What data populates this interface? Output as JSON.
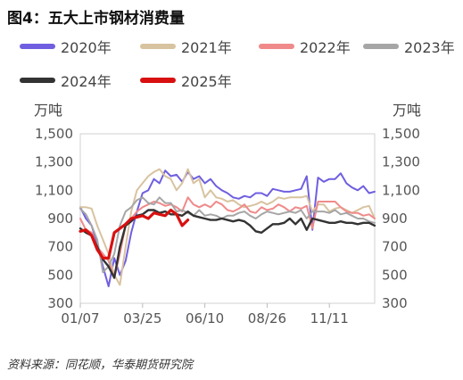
{
  "title": "图4：五大上市钢材消费量",
  "source": "资料来源：同花顺，华泰期货研究院",
  "colors": {
    "2020年": "#6f5fe0",
    "2021年": "#d8c3a0",
    "2022年": "#f08a8a",
    "2023年": "#a6a6a6",
    "2024年": "#333333",
    "2025年": "#d81010"
  },
  "chart_data": {
    "type": "line",
    "title": "",
    "ylabel_left": "万吨",
    "ylabel_right": "万吨",
    "ylim": [
      300,
      1500
    ],
    "yticks": [
      "1,500",
      "1,300",
      "1,100",
      "900",
      "700",
      "500",
      "300"
    ],
    "ytick_values": [
      1500,
      1300,
      1100,
      900,
      700,
      500,
      300
    ],
    "xticks": [
      "01/07",
      "03/25",
      "06/10",
      "08/26",
      "11/11"
    ],
    "xtick_weeks": [
      1,
      12,
      23,
      34,
      45
    ],
    "x_range_weeks": [
      1,
      53
    ],
    "legend_position": "top",
    "series": [
      {
        "name": "2020年",
        "values": [
          980,
          900,
          850,
          720,
          560,
          420,
          620,
          500,
          600,
          800,
          950,
          1080,
          1100,
          1180,
          1150,
          1240,
          1200,
          1210,
          1160,
          1230,
          1180,
          1200,
          1150,
          1180,
          1130,
          1100,
          1080,
          1050,
          1040,
          1060,
          1050,
          1080,
          1080,
          1060,
          1110,
          1100,
          1090,
          1090,
          1100,
          1110,
          1200,
          820,
          1190,
          1160,
          1180,
          1180,
          1220,
          1150,
          1120,
          1100,
          1130,
          1080,
          1090
        ]
      },
      {
        "name": "2021年",
        "values": [
          980,
          980,
          970,
          850,
          750,
          650,
          500,
          430,
          700,
          950,
          1100,
          1150,
          1200,
          1230,
          1250,
          1200,
          1180,
          1100,
          1150,
          1250,
          1150,
          1180,
          1050,
          1100,
          1050,
          1040,
          1020,
          1030,
          1000,
          980,
          990,
          1000,
          1020,
          1000,
          1020,
          1050,
          1040,
          1050,
          1050,
          1050,
          1060,
          950,
          1000,
          1000,
          950,
          970,
          980,
          960,
          940,
          960,
          980,
          990,
          900
        ]
      },
      {
        "name": "2022年",
        "values": [
          900,
          820,
          800,
          700,
          650,
          600,
          480,
          650,
          850,
          900,
          950,
          980,
          1000,
          1020,
          1010,
          990,
          1000,
          980,
          950,
          1050,
          1000,
          980,
          1000,
          980,
          1020,
          1000,
          960,
          950,
          970,
          1000,
          950,
          940,
          980,
          960,
          970,
          1000,
          980,
          950,
          980,
          970,
          990,
          830,
          1020,
          1020,
          1020,
          1020,
          980,
          950,
          940,
          940,
          920,
          930,
          900
        ]
      },
      {
        "name": "2023年",
        "values": [
          970,
          930,
          850,
          750,
          520,
          560,
          650,
          850,
          950,
          980,
          1030,
          1050,
          1010,
          1000,
          1050,
          1010,
          1010,
          950,
          960,
          940,
          920,
          960,
          920,
          930,
          920,
          900,
          920,
          920,
          940,
          950,
          920,
          900,
          930,
          950,
          940,
          930,
          940,
          950,
          940,
          960,
          900,
          950,
          950,
          950,
          940,
          960,
          930,
          940,
          920,
          900,
          900,
          880,
          870
        ]
      },
      {
        "name": "2024年",
        "values": [
          830,
          800,
          780,
          700,
          610,
          560,
          480,
          700,
          850,
          880,
          920,
          930,
          960,
          960,
          940,
          950,
          930,
          930,
          920,
          950,
          920,
          910,
          900,
          890,
          890,
          900,
          890,
          880,
          890,
          880,
          850,
          810,
          800,
          830,
          860,
          860,
          870,
          900,
          860,
          900,
          820,
          900,
          890,
          880,
          870,
          870,
          880,
          870,
          870,
          860,
          870,
          870,
          850
        ]
      },
      {
        "name": "2025年",
        "values": [
          810,
          820,
          780,
          680,
          620,
          620,
          800,
          830,
          860,
          900,
          910,
          920,
          900,
          940,
          930,
          920,
          960,
          930,
          850,
          890
        ]
      }
    ]
  }
}
